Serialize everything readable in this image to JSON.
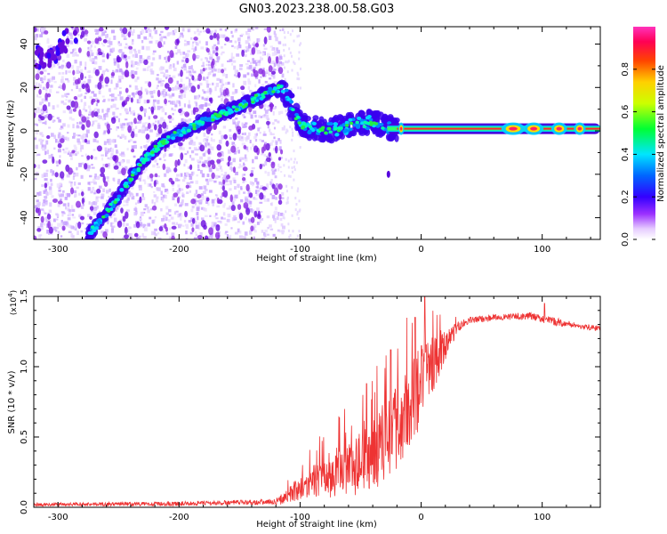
{
  "title": "GN03.2023.238.00.58.G03",
  "chart_data": [
    {
      "type": "heatmap",
      "xlabel": "Height of straight line (km)",
      "ylabel": "Frequency (Hz)",
      "xlim": [
        -320,
        148
      ],
      "ylim": [
        -50,
        48
      ],
      "x_ticks": [
        -300,
        -200,
        -100,
        0,
        100
      ],
      "y_ticks": [
        -40,
        -20,
        0,
        20,
        40
      ],
      "colorbar": {
        "label": "Normalized spectral amplitude",
        "range": [
          0.0,
          1.0
        ],
        "ticks": [
          "0.0",
          "0.2",
          "0.4",
          "0.6",
          "0.8"
        ],
        "colormap": "white-violet-blue-cyan-green-yellow-orange-red-magenta"
      },
      "noise_region_x": [
        -320,
        -115
      ],
      "ridge": {
        "x": [
          -275,
          -260,
          -245,
          -230,
          -215,
          -200,
          -185,
          -170,
          -155,
          -140,
          -125,
          -115,
          -100,
          -80,
          -60,
          -40,
          -30,
          -20,
          0,
          50,
          100,
          148
        ],
        "y": [
          -48,
          -38,
          -26,
          -14,
          -6,
          -1,
          3,
          7,
          10,
          14,
          18,
          20,
          3,
          0,
          2,
          4,
          2,
          0,
          1,
          1,
          1,
          1
        ]
      },
      "upper_left_feature": {
        "x": [
          -318,
          -305,
          -295,
          -285
        ],
        "y": [
          35,
          32,
          40,
          46
        ]
      }
    },
    {
      "type": "line",
      "xlabel": "Height of straight line (km)",
      "ylabel": "SNR (10 * v/v)",
      "scale_note": "(x10",
      "scale_exp": "4",
      "scale_close": ")",
      "xlim": [
        -320,
        148
      ],
      "ylim": [
        0,
        1.5
      ],
      "x_ticks": [
        -300,
        -200,
        -100,
        0,
        100
      ],
      "y_ticks": [
        "0.0",
        "0.5",
        "1.0",
        "1.5"
      ],
      "color": "#ee3333",
      "envelope": {
        "x": [
          -320,
          -200,
          -120,
          -110,
          -90,
          -70,
          -50,
          -40,
          -30,
          -20,
          -10,
          0,
          10,
          20,
          30,
          40,
          60,
          90,
          110,
          130,
          148
        ],
        "mean": [
          0.02,
          0.025,
          0.04,
          0.08,
          0.18,
          0.25,
          0.32,
          0.38,
          0.45,
          0.55,
          0.7,
          0.85,
          1.0,
          1.15,
          1.28,
          1.33,
          1.35,
          1.36,
          1.32,
          1.29,
          1.27
        ],
        "jitter": [
          0.012,
          0.015,
          0.02,
          0.06,
          0.12,
          0.18,
          0.24,
          0.26,
          0.3,
          0.32,
          0.32,
          0.3,
          0.22,
          0.1,
          0.04,
          0.025,
          0.02,
          0.025,
          0.03,
          0.02,
          0.02
        ]
      },
      "peaks": [
        {
          "x": 3,
          "y": 1.5
        },
        {
          "x": -5,
          "y": 1.35
        },
        {
          "x": -25,
          "y": 1.12
        },
        {
          "x": -45,
          "y": 0.88
        },
        {
          "x": 102,
          "y": 1.45
        }
      ]
    }
  ]
}
